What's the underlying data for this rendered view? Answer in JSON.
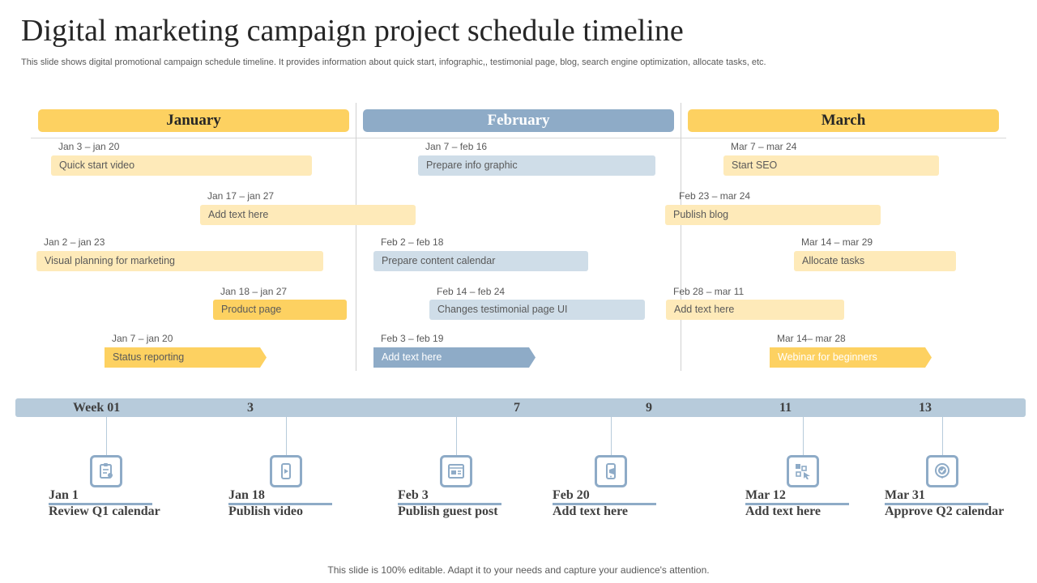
{
  "title": "Digital marketing campaign project schedule timeline",
  "subtitle": "This slide shows digital promotional campaign schedule timeline. It provides information about quick start, infographic,, testimonial page, blog, search engine optimization, allocate tasks, etc.",
  "months": [
    "January",
    "February",
    "March"
  ],
  "tasks": [
    {
      "range": "Jan 3 – jan 20",
      "label": "Quick start video"
    },
    {
      "range": "Jan 17 – jan 27",
      "label": "Add text here"
    },
    {
      "range": "Jan 2 – jan 23",
      "label": "Visual planning for marketing"
    },
    {
      "range": "Jan 18 – jan 27",
      "label": "Product page"
    },
    {
      "range": "Jan 7 – jan 20",
      "label": "Status reporting"
    },
    {
      "range": "Jan 7 – feb 16",
      "label": "Prepare info graphic"
    },
    {
      "range": "Feb 2 – feb 18",
      "label": "Prepare content calendar"
    },
    {
      "range": "Feb 14 – feb 24",
      "label": "Changes testimonial page UI"
    },
    {
      "range": "Feb 3 – feb 19",
      "label": "Add text here"
    },
    {
      "range": "Mar 7 – mar 24",
      "label": "Start SEO"
    },
    {
      "range": "Feb 23 – mar 24",
      "label": "Publish blog"
    },
    {
      "range": "Mar 14 – mar 29",
      "label": "Allocate tasks"
    },
    {
      "range": "Feb 28 – mar 11",
      "label": "Add text here"
    },
    {
      "range": "Mar 14– mar 28",
      "label": "Webinar for beginners"
    }
  ],
  "weeks": [
    "Week 01",
    "3",
    "7",
    "9",
    "11",
    "13"
  ],
  "milestones": [
    {
      "date": "Jan 1",
      "label": "Review Q1 calendar",
      "icon": "clipboard-icon"
    },
    {
      "date": "Jan 18",
      "label": "Publish video",
      "icon": "video-icon"
    },
    {
      "date": "Feb 3",
      "label": "Publish guest post",
      "icon": "webpage-icon"
    },
    {
      "date": "Feb 20",
      "label": "Add text here",
      "icon": "mobile-icon"
    },
    {
      "date": "Mar 12",
      "label": "Add text here",
      "icon": "tasks-icon"
    },
    {
      "date": "Mar 31",
      "label": "Approve Q2 calendar",
      "icon": "check-badge-icon"
    }
  ],
  "footer": "This slide is 100% editable. Adapt it to your needs and capture your audience's attention.",
  "colors": {
    "yellow": "#fdd161",
    "light_yellow": "#feeab9",
    "blue": "#8eabc7",
    "light_blue": "#cfdde8",
    "week_bar": "#b7cbdb"
  }
}
